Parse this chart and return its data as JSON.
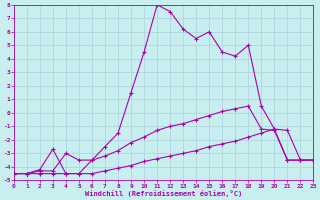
{
  "xlabel": "Windchill (Refroidissement éolien,°C)",
  "bg_color": "#c8eef0",
  "grid_color": "#aad4d8",
  "line_color": "#aa00aa",
  "xmin": 0,
  "xmax": 23,
  "ymin": -5,
  "ymax": 8,
  "xticks": [
    0,
    1,
    2,
    3,
    4,
    5,
    6,
    7,
    8,
    9,
    10,
    11,
    12,
    13,
    14,
    15,
    16,
    17,
    18,
    19,
    20,
    21,
    22,
    23
  ],
  "yticks": [
    -5,
    -4,
    -3,
    -2,
    -1,
    0,
    1,
    2,
    3,
    4,
    5,
    6,
    7,
    8
  ],
  "line1_x": [
    0,
    1,
    2,
    3,
    4,
    5,
    6,
    7,
    8,
    9,
    10,
    11,
    12,
    13,
    14,
    15,
    16,
    17,
    18,
    19,
    20,
    21,
    22,
    23
  ],
  "line1_y": [
    -4.5,
    -4.5,
    -4.2,
    -2.7,
    -4.5,
    -4.5,
    -3.5,
    -2.5,
    -1.5,
    1.5,
    4.5,
    8.0,
    7.5,
    6.2,
    5.5,
    6.0,
    4.5,
    4.2,
    5.0,
    0.5,
    -1.2,
    -1.3,
    -3.5,
    -3.5
  ],
  "line2_x": [
    0,
    1,
    2,
    3,
    4,
    5,
    6,
    7,
    8,
    9,
    10,
    11,
    12,
    13,
    14,
    15,
    16,
    17,
    18,
    19,
    20,
    21,
    22,
    23
  ],
  "line2_y": [
    -4.5,
    -4.5,
    -4.3,
    -4.3,
    -3.0,
    -3.5,
    -3.5,
    -3.2,
    -2.8,
    -2.2,
    -1.8,
    -1.3,
    -1.0,
    -0.8,
    -0.5,
    -0.2,
    0.1,
    0.3,
    0.5,
    -1.2,
    -1.3,
    -3.5,
    -3.5,
    -3.5
  ],
  "line3_x": [
    0,
    1,
    2,
    3,
    4,
    5,
    6,
    7,
    8,
    9,
    10,
    11,
    12,
    13,
    14,
    15,
    16,
    17,
    18,
    19,
    20,
    21,
    22,
    23
  ],
  "line3_y": [
    -4.5,
    -4.5,
    -4.5,
    -4.5,
    -4.5,
    -4.5,
    -4.5,
    -4.3,
    -4.1,
    -3.9,
    -3.6,
    -3.4,
    -3.2,
    -3.0,
    -2.8,
    -2.5,
    -2.3,
    -2.1,
    -1.8,
    -1.5,
    -1.2,
    -3.5,
    -3.5,
    -3.5
  ]
}
